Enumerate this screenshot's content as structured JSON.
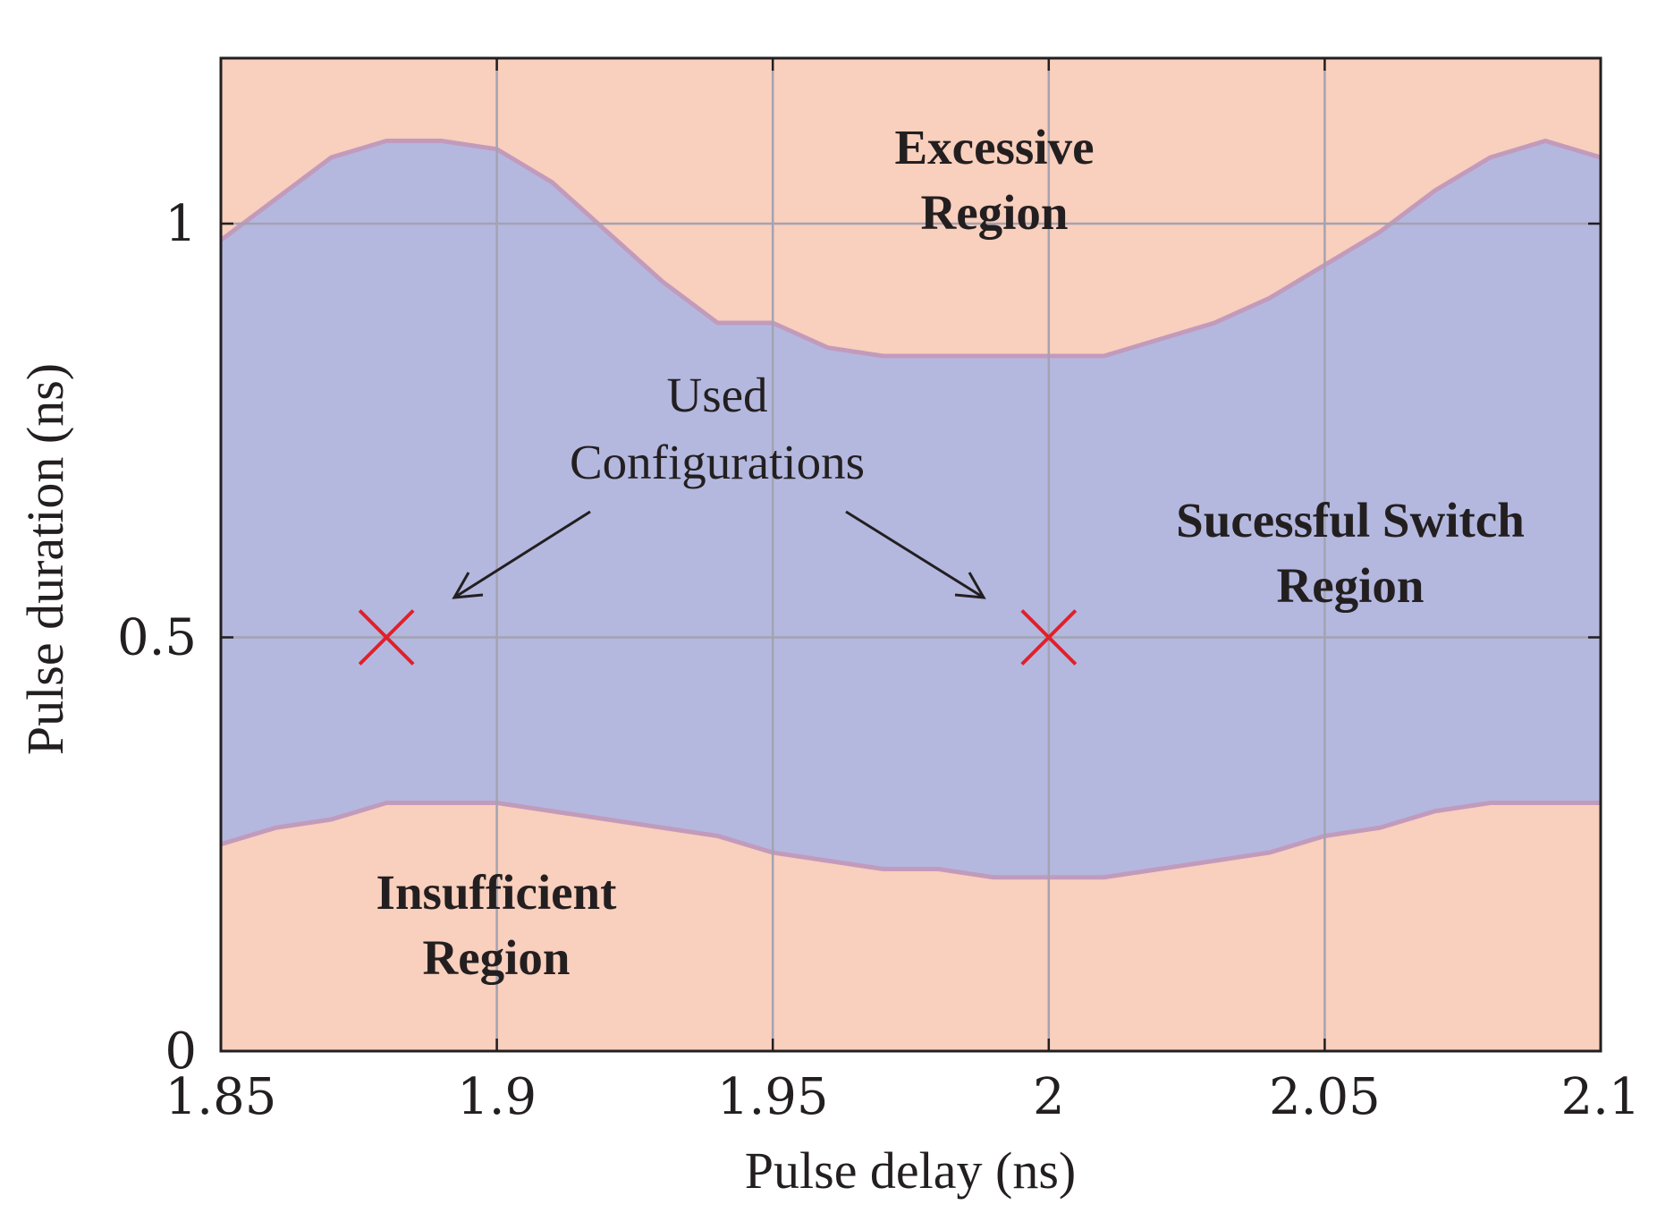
{
  "chart_data": {
    "type": "area",
    "title": "",
    "xlabel": "Pulse delay (ns)",
    "ylabel": "Pulse duration (ns)",
    "xlim": [
      1.85,
      2.1
    ],
    "ylim": [
      0,
      1.2
    ],
    "grid": true,
    "x_ticks": [
      1.85,
      1.9,
      1.95,
      2.0,
      2.05,
      2.1
    ],
    "x_tick_labels": [
      "1.85",
      "1.9",
      "1.95",
      "2",
      "2.05",
      "2.1"
    ],
    "y_ticks": [
      0,
      0.5,
      1.0
    ],
    "y_tick_labels": [
      "0",
      "0.5",
      "1"
    ],
    "colors": {
      "background_region": "#f9cfbd",
      "success_region": "#b4b8df",
      "boundary_line": "#c29bbc",
      "marker": "#e1202a",
      "grid": "#a3a3b2",
      "axis": "#231f20"
    },
    "boundaries": {
      "x": [
        1.85,
        1.86,
        1.87,
        1.88,
        1.89,
        1.9,
        1.91,
        1.92,
        1.93,
        1.94,
        1.95,
        1.96,
        1.97,
        1.98,
        1.99,
        2.0,
        2.01,
        2.02,
        2.03,
        2.04,
        2.05,
        2.06,
        2.07,
        2.08,
        2.09,
        2.1
      ],
      "upper": [
        0.98,
        1.03,
        1.08,
        1.1,
        1.1,
        1.09,
        1.05,
        0.99,
        0.93,
        0.88,
        0.88,
        0.85,
        0.84,
        0.84,
        0.84,
        0.84,
        0.84,
        0.86,
        0.88,
        0.91,
        0.95,
        0.99,
        1.04,
        1.08,
        1.1,
        1.08
      ],
      "lower": [
        0.25,
        0.27,
        0.28,
        0.3,
        0.3,
        0.3,
        0.29,
        0.28,
        0.27,
        0.26,
        0.24,
        0.23,
        0.22,
        0.22,
        0.21,
        0.21,
        0.21,
        0.22,
        0.23,
        0.24,
        0.26,
        0.27,
        0.29,
        0.3,
        0.3,
        0.3
      ]
    },
    "series": [
      {
        "name": "Used Configurations",
        "type": "scatter",
        "marker": "x",
        "x": [
          1.88,
          2.0
        ],
        "y": [
          0.5,
          0.5
        ]
      }
    ],
    "annotations": {
      "excessive": [
        "Excessive",
        "Region"
      ],
      "success": [
        "Sucessful Switch",
        "Region"
      ],
      "insufficient": [
        "Insufficient",
        "Region"
      ],
      "used": [
        "Used",
        "Configurations"
      ]
    }
  }
}
